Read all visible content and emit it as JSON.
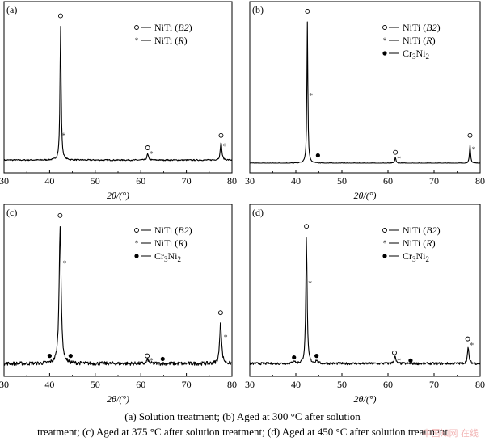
{
  "chart_data": [
    {
      "type": "line",
      "panel_label": "(a)",
      "xlabel": "2θ/(°)",
      "xlim": [
        30,
        80
      ],
      "xticks": [
        "30",
        "40",
        "50",
        "60",
        "70",
        "80"
      ],
      "ylabel": "",
      "grid": false,
      "legend_position": "top-right",
      "legend": [
        {
          "marker": "circle",
          "label": "NiTi (B2)"
        },
        {
          "marker": "asterisk",
          "label": "NiTi (R)"
        }
      ],
      "series": [
        {
          "baseline": 0.02,
          "noise": 0.004,
          "peaks": [
            {
              "x": 42.4,
              "height": 0.88,
              "width": 0.22
            },
            {
              "x": 61.5,
              "height": 0.04,
              "width": 0.28
            },
            {
              "x": 77.6,
              "height": 0.12,
              "width": 0.28
            }
          ]
        }
      ],
      "markers": [
        {
          "type": "circle",
          "x": 42.4,
          "y": 0.96
        },
        {
          "type": "asterisk",
          "x": 43.1,
          "y": 0.18
        },
        {
          "type": "circle",
          "x": 61.5,
          "y": 0.1
        },
        {
          "type": "asterisk",
          "x": 62.3,
          "y": 0.06
        },
        {
          "type": "circle",
          "x": 77.6,
          "y": 0.18
        },
        {
          "type": "asterisk",
          "x": 78.4,
          "y": 0.11
        }
      ]
    },
    {
      "type": "line",
      "panel_label": "(b)",
      "xlabel": "2θ/(°)",
      "xlim": [
        30,
        80
      ],
      "xticks": [
        "30",
        "40",
        "50",
        "60",
        "70",
        "80"
      ],
      "ylabel": "",
      "grid": false,
      "legend_position": "top-right",
      "legend": [
        {
          "marker": "circle",
          "label": "NiTi (B2)"
        },
        {
          "marker": "asterisk",
          "label": "NiTi (R)"
        },
        {
          "marker": "dot",
          "label": "Cr3Ni2"
        }
      ],
      "series": [
        {
          "baseline": 0.0,
          "noise": 0.002,
          "peaks": [
            {
              "x": 42.5,
              "height": 0.92,
              "width": 0.18
            },
            {
              "x": 61.6,
              "height": 0.04,
              "width": 0.2
            },
            {
              "x": 77.8,
              "height": 0.12,
              "width": 0.2
            }
          ]
        }
      ],
      "markers": [
        {
          "type": "circle",
          "x": 42.5,
          "y": 0.99
        },
        {
          "type": "asterisk",
          "x": 43.3,
          "y": 0.44
        },
        {
          "type": "dot",
          "x": 44.8,
          "y": 0.05
        },
        {
          "type": "circle",
          "x": 61.6,
          "y": 0.07
        },
        {
          "type": "asterisk",
          "x": 62.4,
          "y": 0.03
        },
        {
          "type": "circle",
          "x": 77.8,
          "y": 0.18
        },
        {
          "type": "asterisk",
          "x": 78.6,
          "y": 0.09
        }
      ]
    },
    {
      "type": "line",
      "panel_label": "(c)",
      "xlabel": "2θ/(°)",
      "xlim": [
        30,
        80
      ],
      "xticks": [
        "30",
        "40",
        "50",
        "60",
        "70",
        "80"
      ],
      "ylabel": "",
      "grid": false,
      "legend_position": "top-right",
      "legend": [
        {
          "marker": "circle",
          "label": "NiTi (B2)"
        },
        {
          "marker": "asterisk",
          "label": "NiTi (R)"
        },
        {
          "marker": "dot",
          "label": "Cr3Ni2"
        }
      ],
      "series": [
        {
          "baseline": 0.02,
          "noise": 0.012,
          "peaks": [
            {
              "x": 42.3,
              "height": 0.9,
              "width": 0.38
            },
            {
              "x": 61.5,
              "height": 0.03,
              "width": 0.3
            },
            {
              "x": 77.5,
              "height": 0.28,
              "width": 0.35
            }
          ]
        }
      ],
      "markers": [
        {
          "type": "circle",
          "x": 42.3,
          "y": 0.98
        },
        {
          "type": "asterisk",
          "x": 43.3,
          "y": 0.67
        },
        {
          "type": "dot",
          "x": 40.0,
          "y": 0.07
        },
        {
          "type": "dot",
          "x": 44.6,
          "y": 0.07
        },
        {
          "type": "circle",
          "x": 61.4,
          "y": 0.07
        },
        {
          "type": "asterisk",
          "x": 62.3,
          "y": 0.04
        },
        {
          "type": "dot",
          "x": 64.8,
          "y": 0.05
        },
        {
          "type": "circle",
          "x": 77.5,
          "y": 0.35
        },
        {
          "type": "asterisk",
          "x": 78.6,
          "y": 0.19
        }
      ]
    },
    {
      "type": "line",
      "panel_label": "(d)",
      "xlabel": "2θ/(°)",
      "xlim": [
        30,
        80
      ],
      "xticks": [
        "30",
        "40",
        "50",
        "60",
        "70",
        "80"
      ],
      "ylabel": "",
      "grid": false,
      "legend_position": "top-right",
      "legend": [
        {
          "marker": "circle",
          "label": "NiTi (B2)"
        },
        {
          "marker": "asterisk",
          "label": "NiTi (R)"
        },
        {
          "marker": "dot",
          "label": "Cr3Ni2"
        }
      ],
      "series": [
        {
          "baseline": 0.02,
          "noise": 0.008,
          "peaks": [
            {
              "x": 42.3,
              "height": 0.82,
              "width": 0.25
            },
            {
              "x": 39.6,
              "height": 0.02,
              "width": 0.3
            },
            {
              "x": 44.5,
              "height": 0.02,
              "width": 0.3
            },
            {
              "x": 61.5,
              "height": 0.05,
              "width": 0.3
            },
            {
              "x": 77.4,
              "height": 0.1,
              "width": 0.3
            }
          ]
        }
      ],
      "markers": [
        {
          "type": "circle",
          "x": 42.3,
          "y": 0.91
        },
        {
          "type": "asterisk",
          "x": 43.1,
          "y": 0.54
        },
        {
          "type": "dot",
          "x": 39.6,
          "y": 0.06
        },
        {
          "type": "dot",
          "x": 44.5,
          "y": 0.07
        },
        {
          "type": "circle",
          "x": 61.4,
          "y": 0.09
        },
        {
          "type": "asterisk",
          "x": 62.4,
          "y": 0.04
        },
        {
          "type": "dot",
          "x": 64.9,
          "y": 0.04
        },
        {
          "type": "circle",
          "x": 77.3,
          "y": 0.18
        },
        {
          "type": "asterisk",
          "x": 78.2,
          "y": 0.14
        }
      ]
    }
  ],
  "caption_line1": "(a) Solution treatment; (b) Aged at 300 °C after solution",
  "caption_line2": "treatment; (c) Aged at 375 °C after solution treatment; (d) Aged at 450 °C after solution treatment",
  "watermark": "中国知网 在线",
  "colors": {
    "line": "#000000",
    "caption": "#000000",
    "watermark": "#f2b6b6"
  }
}
